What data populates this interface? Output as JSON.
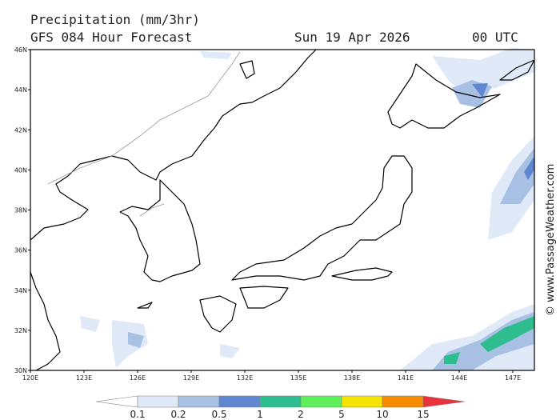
{
  "header": {
    "title": "Precipitation (mm/3hr)",
    "subtitle": "GFS 084 Hour Forecast",
    "date": "Sun 19 Apr 2026",
    "time": "00 UTC"
  },
  "map": {
    "lon_labels": [
      "120E",
      "123E",
      "126E",
      "129E",
      "132E",
      "135E",
      "138E",
      "141E",
      "144E",
      "147E"
    ],
    "lat_labels": [
      "30N",
      "32N",
      "34N",
      "36N",
      "38N",
      "40N",
      "42N",
      "44N",
      "46N"
    ]
  },
  "colorbar": {
    "labels": [
      "0.1",
      "0.2",
      "0.5",
      "1",
      "2",
      "5",
      "10",
      "15"
    ],
    "colors": [
      "#ffffff",
      "#dfe9f7",
      "#a8c0e3",
      "#5f87d0",
      "#2ebd8e",
      "#5df05a",
      "#f5e400",
      "#f58c00",
      "#e8323c"
    ]
  },
  "credit": "© www.PassageWeather.com"
}
